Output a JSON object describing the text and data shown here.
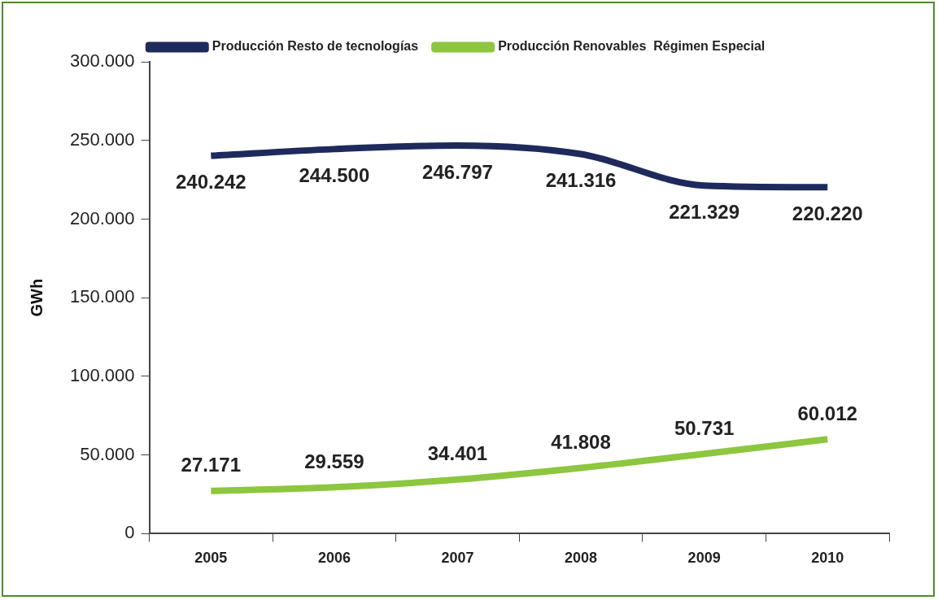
{
  "chart_data": {
    "type": "line",
    "ylabel": "GWh",
    "categories": [
      "2005",
      "2006",
      "2007",
      "2008",
      "2009",
      "2010"
    ],
    "ylim": [
      0,
      300000
    ],
    "yticks": [
      0,
      {
        "value": 50000,
        "label": "50.000"
      },
      {
        "value": 100000,
        "label": "100.000"
      },
      {
        "value": 150000,
        "label": "150.000"
      },
      {
        "value": 200000,
        "label": "200.000"
      },
      {
        "value": 250000,
        "label": "250.000"
      },
      {
        "value": 300000,
        "label": "300.000"
      }
    ],
    "series": [
      {
        "name": "Producción Resto de tecnologías",
        "color": "#1f2a5c",
        "values": [
          240242,
          244500,
          246797,
          241316,
          221329,
          220220
        ],
        "value_labels": [
          "240.242",
          "244.500",
          "246.797",
          "241.316",
          "221.329",
          "220.220"
        ]
      },
      {
        "name": "Producción Renovables  Régimen Especial",
        "color": "#8dc63f",
        "values": [
          27171,
          29559,
          34401,
          41808,
          50731,
          60012
        ],
        "value_labels": [
          "27.171",
          "29.559",
          "34.401",
          "41.808",
          "50.731",
          "60.012"
        ]
      }
    ],
    "grid": false,
    "legend": "top",
    "marker": "none",
    "line_style": "solid"
  }
}
